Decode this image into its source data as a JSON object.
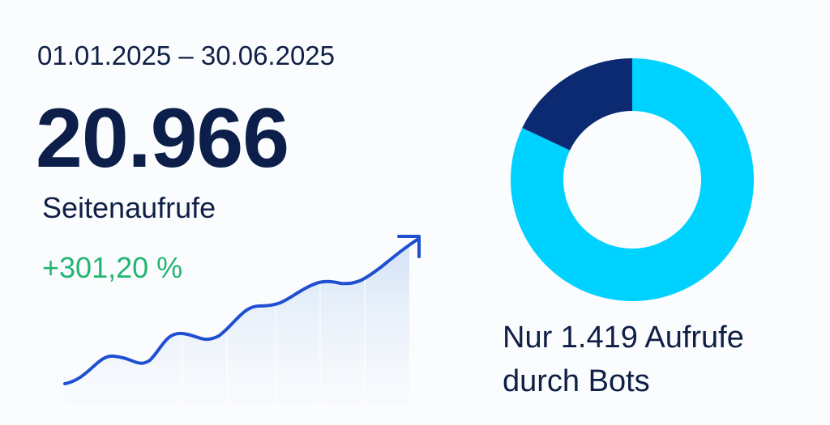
{
  "period": "01.01.2025 – 30.06.2025",
  "total": "20.966",
  "total_label": "Seitenaufrufe",
  "change": "+301,20 %",
  "caption": [
    "Nur 1.419 Aufrufe",
    "durch Bots"
  ],
  "donut": {
    "values": [
      18,
      82
    ],
    "colors": [
      "#0b2a72",
      "#00d2ff"
    ]
  }
}
